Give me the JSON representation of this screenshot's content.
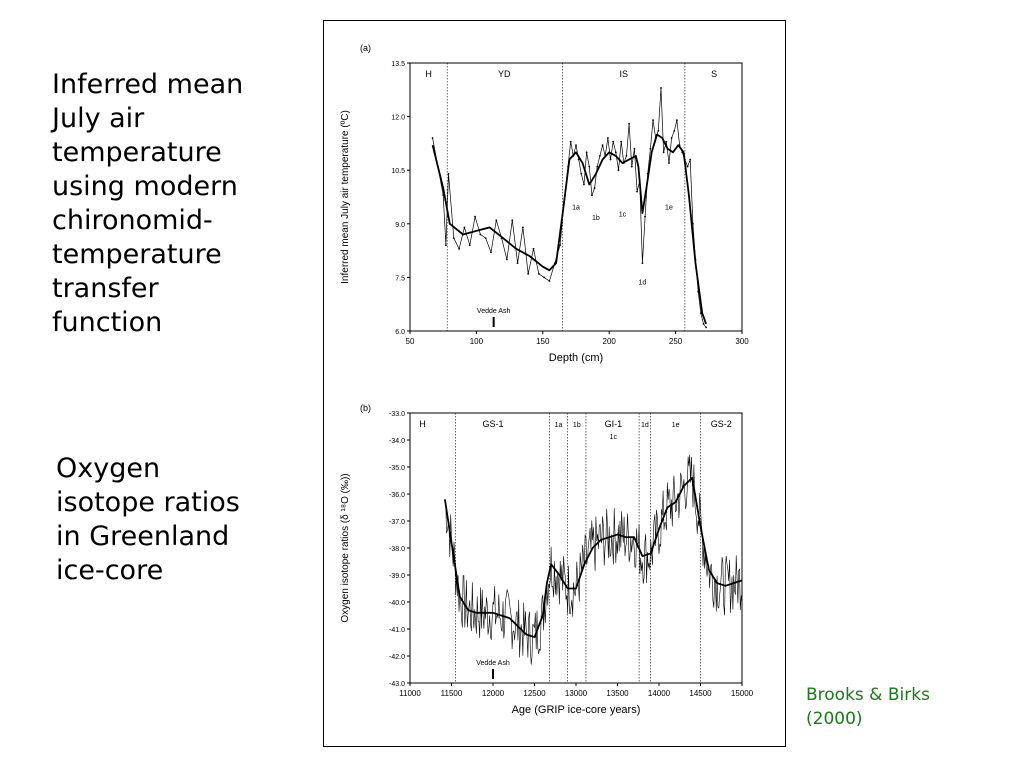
{
  "captions": {
    "panel_a": "Inferred mean\nJuly air\ntemperature\nusing modern\nchironomid-\ntemperature\ntransfer\nfunction",
    "panel_b": "Oxygen\nisotope ratios\nin Greenland\nice-core",
    "credit": "Brooks & Birks\n(2000)"
  },
  "colors": {
    "credit": "#1a7a1a",
    "line": "#000000"
  },
  "chart_data": [
    {
      "type": "line",
      "panel_label": "(a)",
      "xlabel": "Depth (cm)",
      "ylabel": "Inferred mean July air temperature (ºC)",
      "xlim": [
        50,
        300
      ],
      "ylim": [
        6.0,
        13.5
      ],
      "xticks": [
        50,
        100,
        150,
        200,
        250,
        300
      ],
      "yticks": [
        6.0,
        7.5,
        9.0,
        10.5,
        12.0,
        13.5
      ],
      "zone_boundaries": [
        78,
        165,
        257
      ],
      "zones": [
        {
          "label": "H",
          "x": 64
        },
        {
          "label": "YD",
          "x": 121
        },
        {
          "label": "IS",
          "x": 211
        },
        {
          "label": "S",
          "x": 279
        }
      ],
      "annotations": [
        {
          "label": "1a",
          "x": 175,
          "y": 9.4
        },
        {
          "label": "1b",
          "x": 190,
          "y": 9.1
        },
        {
          "label": "1c",
          "x": 210,
          "y": 9.2
        },
        {
          "label": "1d",
          "x": 225,
          "y": 7.3
        },
        {
          "label": "1e",
          "x": 245,
          "y": 9.4
        }
      ],
      "marker": {
        "label": "Vedde Ash",
        "x": 113
      },
      "series": [
        {
          "role": "raw",
          "x": [
            67,
            71,
            75,
            77,
            79,
            83,
            87,
            91,
            95,
            99,
            103,
            107,
            111,
            115,
            119,
            123,
            127,
            131,
            135,
            139,
            143,
            147,
            151,
            155,
            159,
            163,
            166,
            169,
            171,
            173,
            175,
            177,
            179,
            181,
            183,
            185,
            187,
            189,
            191,
            193,
            195,
            197,
            199,
            201,
            203,
            205,
            207,
            209,
            211,
            213,
            215,
            217,
            219,
            221,
            223,
            225,
            227,
            229,
            231,
            233,
            235,
            237,
            239,
            241,
            243,
            245,
            247,
            249,
            251,
            253,
            255,
            257,
            259,
            261,
            263,
            265,
            267,
            269,
            271,
            273
          ],
          "y": [
            11.4,
            10.6,
            9.8,
            8.4,
            10.4,
            8.6,
            8.3,
            8.9,
            8.4,
            9.2,
            8.7,
            8.6,
            8.2,
            9.1,
            8.6,
            8.0,
            9.1,
            7.9,
            8.9,
            7.6,
            8.3,
            7.6,
            7.5,
            7.4,
            7.9,
            8.4,
            9.6,
            10.6,
            11.3,
            10.9,
            11.2,
            10.8,
            10.4,
            10.1,
            11.0,
            10.6,
            9.8,
            10.0,
            10.6,
            10.9,
            11.2,
            10.9,
            11.4,
            10.8,
            11.3,
            11.0,
            10.5,
            11.3,
            10.7,
            10.9,
            11.8,
            10.6,
            11.1,
            9.9,
            10.2,
            7.9,
            9.2,
            10.4,
            11.1,
            11.9,
            11.4,
            11.6,
            12.8,
            11.0,
            11.3,
            10.7,
            11.4,
            11.6,
            11.9,
            11.2,
            11.0,
            10.8,
            10.6,
            10.8,
            9.0,
            8.0,
            7.1,
            6.5,
            6.2,
            6.1
          ]
        },
        {
          "role": "smoothed",
          "x": [
            67,
            75,
            80,
            90,
            100,
            110,
            120,
            130,
            140,
            150,
            155,
            160,
            165,
            170,
            175,
            180,
            185,
            190,
            195,
            200,
            205,
            210,
            215,
            220,
            222,
            225,
            228,
            232,
            236,
            240,
            244,
            248,
            252,
            256,
            260,
            265,
            270,
            273
          ],
          "y": [
            11.2,
            10.0,
            9.0,
            8.7,
            8.8,
            8.9,
            8.6,
            8.3,
            8.1,
            7.8,
            7.7,
            7.9,
            9.3,
            10.8,
            11.0,
            10.7,
            10.1,
            10.4,
            10.8,
            11.0,
            10.9,
            10.7,
            10.8,
            10.9,
            10.6,
            9.3,
            10.0,
            11.0,
            11.5,
            11.4,
            11.1,
            11.0,
            11.2,
            11.0,
            9.8,
            7.9,
            6.5,
            6.2
          ]
        }
      ]
    },
    {
      "type": "line",
      "panel_label": "(b)",
      "xlabel": "Age (GRIP ice-core years)",
      "ylabel": "Oxygen isotope ratios (δ ¹⁸O (‰))",
      "xlim": [
        11000,
        15000
      ],
      "ylim": [
        -43.0,
        -33.0
      ],
      "xticks": [
        11000,
        11500,
        12000,
        12500,
        13000,
        13500,
        14000,
        14500,
        15000
      ],
      "yticks": [
        -33.0,
        -34.0,
        -35.0,
        -36.0,
        -37.0,
        -38.0,
        -39.0,
        -40.0,
        -41.0,
        -42.0,
        -43.0
      ],
      "zone_boundaries": [
        11550,
        12680,
        12900,
        13120,
        13760,
        13900,
        14500
      ],
      "zones": [
        {
          "label": "H",
          "x": 11150
        },
        {
          "label": "GS-1",
          "x": 12000
        },
        {
          "label": "1a",
          "x": 12790
        },
        {
          "label": "1b",
          "x": 13010
        },
        {
          "label": "GI-1",
          "x": 13450
        },
        {
          "label": "1c",
          "x": 13450
        },
        {
          "label": "1d",
          "x": 13830
        },
        {
          "label": "1e",
          "x": 14200
        },
        {
          "label": "GS-2",
          "x": 14750
        }
      ],
      "marker": {
        "label": "Vedde Ash",
        "x": 12000
      },
      "series": [
        {
          "role": "smoothed",
          "x": [
            11420,
            11500,
            11600,
            11700,
            11800,
            11900,
            12000,
            12100,
            12200,
            12300,
            12400,
            12500,
            12600,
            12650,
            12700,
            12800,
            12900,
            13000,
            13100,
            13200,
            13300,
            13400,
            13500,
            13600,
            13700,
            13800,
            13900,
            14000,
            14100,
            14200,
            14300,
            14400,
            14500,
            14600,
            14700,
            14800,
            14900,
            15000
          ],
          "y": [
            -36.2,
            -37.8,
            -39.8,
            -40.3,
            -40.4,
            -40.4,
            -40.4,
            -40.5,
            -40.6,
            -40.9,
            -41.2,
            -41.3,
            -40.5,
            -39.3,
            -38.6,
            -39.0,
            -39.5,
            -39.5,
            -38.6,
            -38.0,
            -37.7,
            -37.6,
            -37.5,
            -37.6,
            -37.6,
            -38.3,
            -38.2,
            -37.3,
            -36.5,
            -36.3,
            -35.7,
            -35.4,
            -37.2,
            -38.8,
            -39.3,
            -39.4,
            -39.3,
            -39.2
          ]
        }
      ]
    }
  ]
}
